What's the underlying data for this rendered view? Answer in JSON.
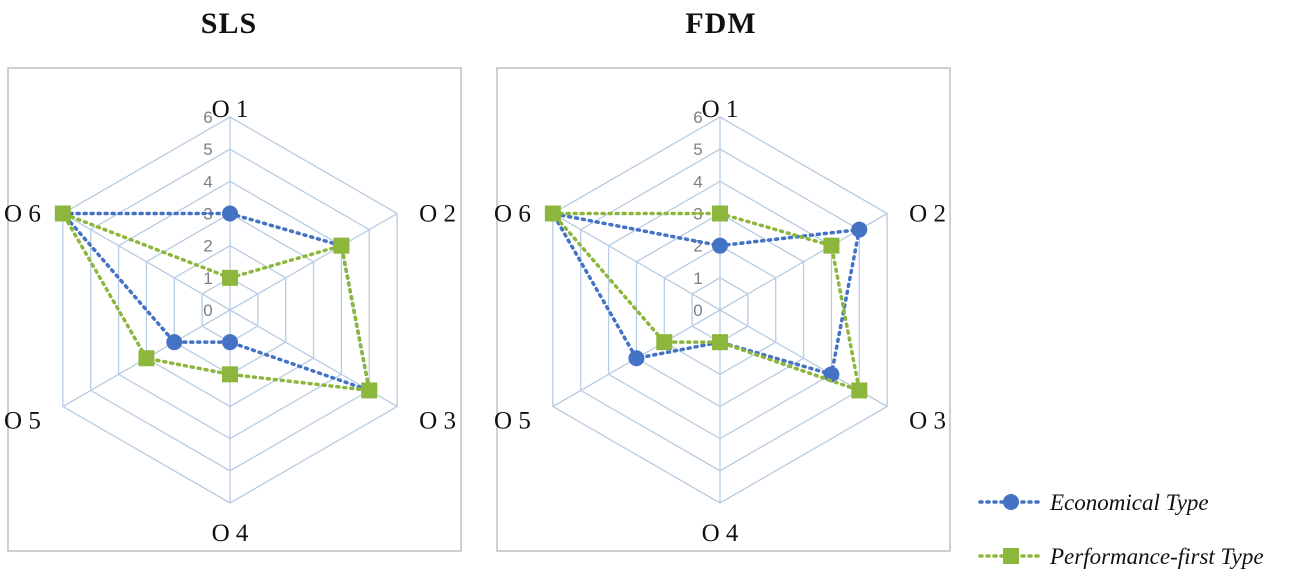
{
  "colors": {
    "economical": "#4472C4",
    "performance": "#8DB63C",
    "grid": "#B8CCE4",
    "frame": "#BFBFBF"
  },
  "legend": {
    "items": [
      {
        "label": "Economical Type",
        "marker": "circle",
        "line": "dotted"
      },
      {
        "label": "Performance-first Type",
        "marker": "square",
        "line": "dotted"
      }
    ],
    "position": "bottom-right"
  },
  "chart_data": [
    {
      "type": "radar",
      "title": "SLS",
      "categories": [
        "O 1",
        "O 2",
        "O 3",
        "O 4",
        "O 5",
        "O 6"
      ],
      "rlim": [
        0,
        6
      ],
      "ticks": [
        "0",
        "1",
        "2",
        "3",
        "4",
        "5",
        "6"
      ],
      "grid": true,
      "series": [
        {
          "name": "Economical Type",
          "values": [
            3,
            4,
            5,
            1,
            2,
            6
          ]
        },
        {
          "name": "Performance-first Type",
          "values": [
            1,
            4,
            5,
            2,
            3,
            6
          ]
        }
      ]
    },
    {
      "type": "radar",
      "title": "FDM",
      "categories": [
        "O 1",
        "O 2",
        "O 3",
        "O 4",
        "O 5",
        "O 6"
      ],
      "rlim": [
        0,
        6
      ],
      "ticks": [
        "0",
        "1",
        "2",
        "3",
        "4",
        "5",
        "6"
      ],
      "grid": true,
      "series": [
        {
          "name": "Economical Type",
          "values": [
            2,
            5,
            4,
            1,
            3,
            6
          ]
        },
        {
          "name": "Performance-first Type",
          "values": [
            3,
            4,
            5,
            1,
            2,
            6
          ]
        }
      ]
    }
  ]
}
